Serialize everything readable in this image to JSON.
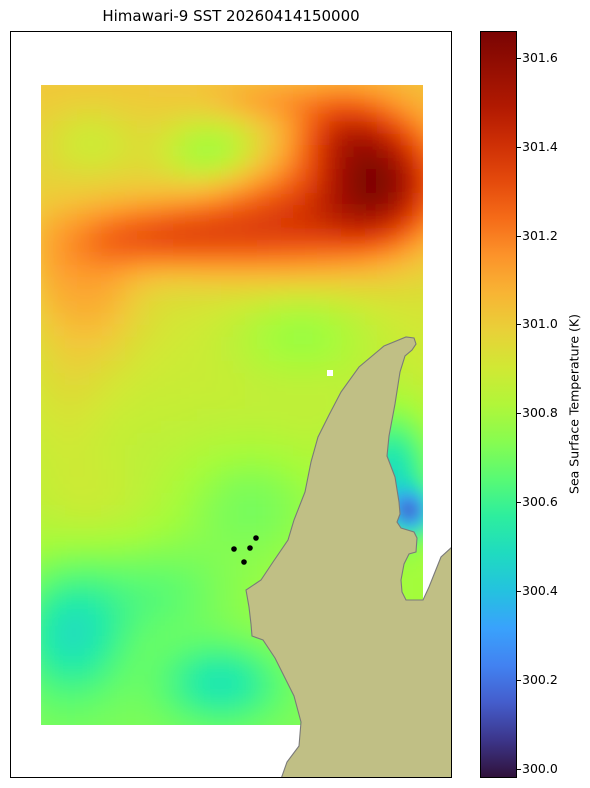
{
  "title": "Himawari-9 SST 20260414150000",
  "colorbar": {
    "label": "Sea Surface Temperature (K)",
    "min": 299.98,
    "max": 301.66,
    "ticks": [
      "300.0",
      "300.2",
      "300.4",
      "300.6",
      "300.8",
      "301.0",
      "301.2",
      "301.4",
      "301.6"
    ],
    "colormap": "turbo"
  },
  "colors": {
    "land": "#c0bf85",
    "coastline": "#7a7a7a",
    "markers": "#000000"
  }
}
